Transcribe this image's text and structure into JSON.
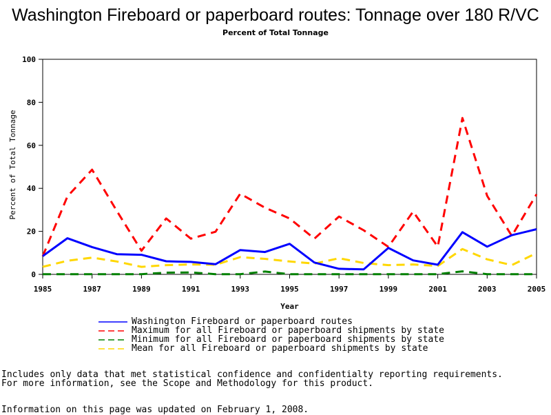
{
  "chart_data": {
    "type": "line",
    "title": "Washington Fireboard or paperboard routes: Tonnage over 180 R/VC",
    "subtitle": "Percent of Total Tonnage",
    "xlabel": "Year",
    "ylabel": "Percent of Total Tonnage",
    "xlim": [
      1985,
      2005
    ],
    "ylim": [
      0,
      100
    ],
    "x_ticks": [
      1985,
      1987,
      1989,
      1991,
      1993,
      1995,
      1997,
      1999,
      2001,
      2003,
      2005
    ],
    "y_ticks": [
      0,
      20,
      40,
      60,
      80,
      100
    ],
    "grid": false,
    "legend_position": "bottom",
    "x": [
      1985,
      1986,
      1987,
      1988,
      1989,
      1990,
      1991,
      1992,
      1993,
      1994,
      1995,
      1996,
      1997,
      1998,
      1999,
      2000,
      2001,
      2002,
      2003,
      2004,
      2005
    ],
    "series": [
      {
        "name": "Washington Fireboard or paperboard routes",
        "color": "#0000ff",
        "style": "solid",
        "values": [
          8.5,
          16.8,
          12.7,
          9.4,
          9.1,
          6.1,
          5.8,
          4.7,
          11.3,
          10.4,
          14.2,
          5.5,
          2.6,
          2.3,
          12.3,
          6.5,
          4.5,
          19.6,
          12.9,
          18.2,
          21.0
        ]
      },
      {
        "name": "Maximum for all Fireboard or paperboard shipments by state",
        "color": "#ff0000",
        "style": "dashed",
        "values": [
          8.4,
          36.2,
          48.7,
          29.5,
          11.0,
          26.0,
          16.6,
          19.8,
          37.5,
          31.0,
          26.0,
          16.6,
          26.9,
          20.5,
          12.8,
          29.2,
          12.9,
          72.7,
          36.5,
          17.9,
          37.2
        ]
      },
      {
        "name": "Minimum for all Fireboard or paperboard shipments by state",
        "color": "#008000",
        "style": "dashed",
        "values": [
          0.1,
          0.1,
          0.1,
          0.1,
          0.1,
          0.8,
          0.9,
          0.1,
          0.1,
          1.3,
          0.1,
          0.1,
          0.1,
          0.1,
          0.1,
          0.1,
          0.1,
          1.4,
          0.1,
          0.1,
          0.1
        ]
      },
      {
        "name": "Mean for all Fireboard or paperboard shipments by state",
        "color": "#ffd700",
        "style": "dashed",
        "values": [
          3.5,
          6.3,
          7.8,
          6.0,
          3.5,
          4.3,
          4.6,
          4.5,
          8.0,
          7.2,
          6.0,
          5.0,
          7.5,
          5.3,
          4.3,
          4.6,
          3.9,
          11.8,
          7.0,
          4.3,
          9.9
        ]
      }
    ]
  },
  "footnotes": {
    "line1": "Includes only data that met statistical confidence and confidentialty reporting requirements.",
    "line2": "For more information, see the Scope and Methodology for this product.",
    "line3": "Information on this page was updated on February 1, 2008."
  }
}
